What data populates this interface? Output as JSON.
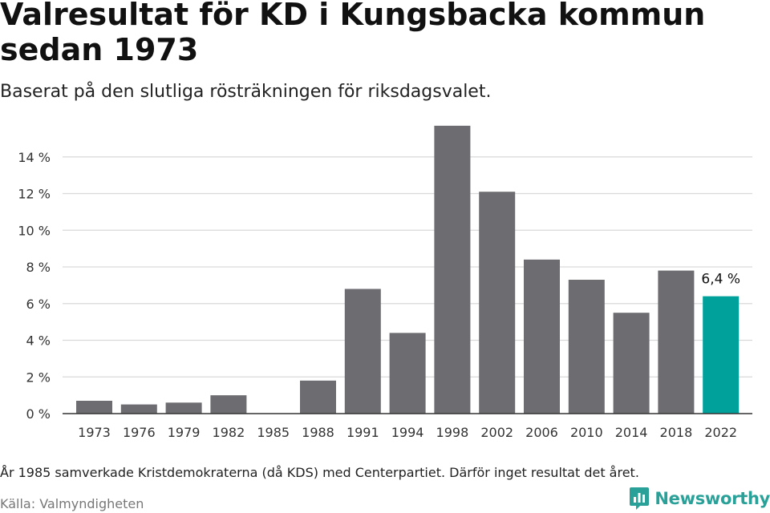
{
  "header": {
    "title": "Valresultat för KD i Kungsbacka kommun sedan 1973",
    "subtitle": "Baserat på den slutliga rösträkningen för riksdagsvalet."
  },
  "footer": {
    "note": "År 1985 samverkade Kristdemokraterna (då KDS) med Centerpartiet. Därför inget resultat det året.",
    "source": "Källa: Valmyndigheten",
    "brand": "Newsworthy"
  },
  "colors": {
    "bar": "#6d6c70",
    "highlight": "#00a19a",
    "grid": "#d9d9d9",
    "axis": "#333333"
  },
  "chart_data": {
    "type": "bar",
    "title": "Valresultat för KD i Kungsbacka kommun sedan 1973",
    "xlabel": "",
    "ylabel": "",
    "categories": [
      "1973",
      "1976",
      "1979",
      "1982",
      "1985",
      "1988",
      "1991",
      "1994",
      "1998",
      "2002",
      "2006",
      "2010",
      "2014",
      "2018",
      "2022"
    ],
    "values": [
      0.7,
      0.5,
      0.6,
      1.0,
      null,
      1.8,
      6.8,
      4.4,
      15.7,
      12.1,
      8.4,
      7.3,
      5.5,
      7.8,
      6.4
    ],
    "ylim": [
      0,
      16
    ],
    "yticks": [
      0,
      2,
      4,
      6,
      8,
      10,
      12,
      14
    ],
    "ytick_labels": [
      "0 %",
      "2 %",
      "4 %",
      "6 %",
      "8 %",
      "10 %",
      "12 %",
      "14 %"
    ],
    "highlight_index": 14,
    "data_labels": [
      {
        "index": 14,
        "text": "6,4 %"
      }
    ],
    "grid": true
  }
}
